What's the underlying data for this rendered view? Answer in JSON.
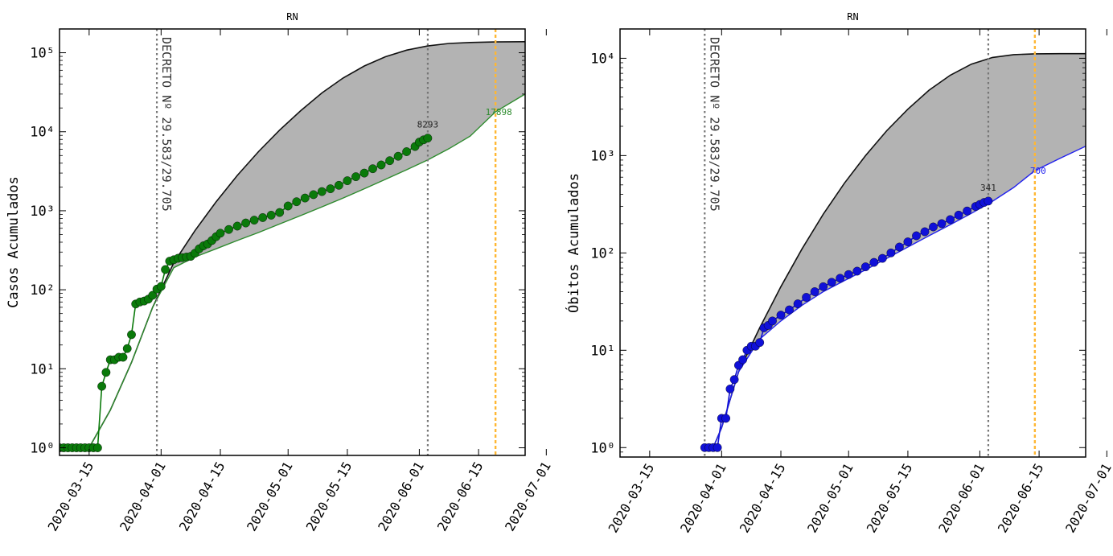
{
  "chart_data": [
    {
      "type": "line",
      "title": "RN",
      "ylabel": "Casos Acumulados",
      "xlabel": "",
      "yscale": "log",
      "ylim": [
        0.8,
        200000
      ],
      "xlim": [
        "2020-03-08",
        "2020-06-26"
      ],
      "xticks": [
        "2020-03-15",
        "2020-04-01",
        "2020-04-15",
        "2020-05-01",
        "2020-05-15",
        "2020-06-01",
        "2020-06-15",
        "2020-07-01"
      ],
      "ytick_labels": [
        "10⁰",
        "10¹",
        "10²",
        "10³",
        "10⁴",
        "10⁵"
      ],
      "ytick_values": [
        1,
        10,
        100,
        1000,
        10000,
        100000
      ],
      "grid": false,
      "legend": "none",
      "annotations": {
        "decree_label": "DECRETO Nº 29.583/29.705",
        "decree_date": "2020-03-31",
        "last_value_label": "8293",
        "last_date": "2020-06-03",
        "projection_label": "17898",
        "projection_date": "2020-06-19"
      },
      "colors": {
        "data": "#0a7a0a",
        "fit": "#2e8b2e",
        "envelope_fill": "#b3b3b3",
        "envelope_upper": "#111111",
        "projection_line": "#ffb733",
        "marker_line": "#777777"
      },
      "series": [
        {
          "name": "",
          "role": "observed",
          "x": [
            "2020-03-08",
            "2020-03-09",
            "2020-03-10",
            "2020-03-11",
            "2020-03-12",
            "2020-03-13",
            "2020-03-14",
            "2020-03-15",
            "2020-03-16",
            "2020-03-17",
            "2020-03-18",
            "2020-03-19",
            "2020-03-20",
            "2020-03-21",
            "2020-03-22",
            "2020-03-23",
            "2020-03-24",
            "2020-03-25",
            "2020-03-26",
            "2020-03-27",
            "2020-03-28",
            "2020-03-29",
            "2020-03-30",
            "2020-03-31",
            "2020-04-01",
            "2020-04-02",
            "2020-04-03",
            "2020-04-04",
            "2020-04-05",
            "2020-04-06",
            "2020-04-07",
            "2020-04-08",
            "2020-04-09",
            "2020-04-10",
            "2020-04-11",
            "2020-04-12",
            "2020-04-13",
            "2020-04-14",
            "2020-04-15",
            "2020-04-17",
            "2020-04-19",
            "2020-04-21",
            "2020-04-23",
            "2020-04-25",
            "2020-04-27",
            "2020-04-29",
            "2020-05-01",
            "2020-05-03",
            "2020-05-05",
            "2020-05-07",
            "2020-05-09",
            "2020-05-11",
            "2020-05-13",
            "2020-05-15",
            "2020-05-17",
            "2020-05-19",
            "2020-05-21",
            "2020-05-23",
            "2020-05-25",
            "2020-05-27",
            "2020-05-29",
            "2020-05-31",
            "2020-06-01",
            "2020-06-02",
            "2020-06-03"
          ],
          "y": [
            1,
            1,
            1,
            1,
            1,
            1,
            1,
            1,
            1,
            1,
            6,
            9,
            13,
            13,
            14,
            14,
            18,
            27,
            66,
            70,
            72,
            76,
            85,
            102,
            110,
            180,
            230,
            240,
            250,
            255,
            260,
            265,
            290,
            330,
            360,
            380,
            420,
            470,
            520,
            580,
            640,
            700,
            760,
            820,
            880,
            950,
            1150,
            1300,
            1450,
            1600,
            1750,
            1900,
            2100,
            2400,
            2700,
            3000,
            3400,
            3800,
            4300,
            4900,
            5600,
            6500,
            7400,
            7900,
            8293
          ]
        },
        {
          "name": "",
          "role": "fit",
          "x": [
            "2020-03-15",
            "2020-03-20",
            "2020-03-25",
            "2020-03-30",
            "2020-04-04",
            "2020-04-09",
            "2020-04-14",
            "2020-04-19",
            "2020-04-24",
            "2020-04-29",
            "2020-05-04",
            "2020-05-09",
            "2020-05-14",
            "2020-05-19",
            "2020-05-24",
            "2020-05-29",
            "2020-06-03",
            "2020-06-08",
            "2020-06-13",
            "2020-06-19",
            "2020-06-26"
          ],
          "y": [
            1,
            3,
            12,
            60,
            190,
            260,
            330,
            420,
            530,
            680,
            870,
            1120,
            1450,
            1900,
            2500,
            3300,
            4400,
            6100,
            8800,
            17898,
            30000
          ]
        },
        {
          "name": "",
          "role": "upper_envelope",
          "x": [
            "2020-03-15",
            "2020-03-20",
            "2020-03-25",
            "2020-03-30",
            "2020-04-04",
            "2020-04-09",
            "2020-04-14",
            "2020-04-19",
            "2020-04-24",
            "2020-04-29",
            "2020-05-04",
            "2020-05-09",
            "2020-05-14",
            "2020-05-19",
            "2020-05-24",
            "2020-05-29",
            "2020-06-03",
            "2020-06-08",
            "2020-06-13",
            "2020-06-19",
            "2020-06-26"
          ],
          "y": [
            1,
            3,
            12,
            60,
            220,
            560,
            1300,
            2800,
            5600,
            10500,
            18500,
            31000,
            48000,
            68000,
            89000,
            108000,
            122000,
            131000,
            135000,
            137000,
            138000
          ]
        }
      ]
    },
    {
      "type": "line",
      "title": "RN",
      "ylabel": "Óbitos Acumulados",
      "xlabel": "",
      "yscale": "log",
      "ylim": [
        0.8,
        20000
      ],
      "xlim": [
        "2020-03-08",
        "2020-06-26"
      ],
      "xticks": [
        "2020-03-15",
        "2020-04-01",
        "2020-04-15",
        "2020-05-01",
        "2020-05-15",
        "2020-06-01",
        "2020-06-15",
        "2020-07-01"
      ],
      "ytick_labels": [
        "10⁰",
        "10¹",
        "10²",
        "10³",
        "10⁴"
      ],
      "ytick_values": [
        1,
        10,
        100,
        1000,
        10000
      ],
      "grid": false,
      "legend": "none",
      "annotations": {
        "decree_label": "DECRETO Nº 29.583/29.705",
        "decree_date": "2020-03-28",
        "last_value_label": "341",
        "last_date": "2020-06-03",
        "projection_label": "700",
        "projection_date": "2020-06-14"
      },
      "colors": {
        "data": "#1010d8",
        "fit": "#2222ee",
        "envelope_fill": "#b3b3b3",
        "envelope_upper": "#111111",
        "projection_line": "#ffb733",
        "marker_line": "#777777"
      },
      "series": [
        {
          "name": "",
          "role": "observed",
          "x": [
            "2020-03-28",
            "2020-03-29",
            "2020-03-30",
            "2020-03-31",
            "2020-04-01",
            "2020-04-02",
            "2020-04-03",
            "2020-04-04",
            "2020-04-05",
            "2020-04-06",
            "2020-04-07",
            "2020-04-08",
            "2020-04-09",
            "2020-04-10",
            "2020-04-11",
            "2020-04-12",
            "2020-04-13",
            "2020-04-15",
            "2020-04-17",
            "2020-04-19",
            "2020-04-21",
            "2020-04-23",
            "2020-04-25",
            "2020-04-27",
            "2020-04-29",
            "2020-05-01",
            "2020-05-03",
            "2020-05-05",
            "2020-05-07",
            "2020-05-09",
            "2020-05-11",
            "2020-05-13",
            "2020-05-15",
            "2020-05-17",
            "2020-05-19",
            "2020-05-21",
            "2020-05-23",
            "2020-05-25",
            "2020-05-27",
            "2020-05-29",
            "2020-05-31",
            "2020-06-01",
            "2020-06-02",
            "2020-06-03"
          ],
          "y": [
            1,
            1,
            1,
            1,
            2,
            2,
            4,
            5,
            7,
            8,
            10,
            11,
            11,
            12,
            17,
            18,
            20,
            23,
            26,
            30,
            35,
            40,
            45,
            50,
            55,
            60,
            65,
            72,
            80,
            88,
            100,
            115,
            130,
            150,
            165,
            185,
            200,
            220,
            245,
            270,
            300,
            315,
            330,
            341
          ]
        },
        {
          "name": "",
          "role": "fit",
          "x": [
            "2020-03-30",
            "2020-04-01",
            "2020-04-05",
            "2020-04-10",
            "2020-04-15",
            "2020-04-20",
            "2020-04-25",
            "2020-04-30",
            "2020-05-05",
            "2020-05-10",
            "2020-05-15",
            "2020-05-20",
            "2020-05-25",
            "2020-05-30",
            "2020-06-04",
            "2020-06-09",
            "2020-06-14",
            "2020-06-20",
            "2020-06-26"
          ],
          "y": [
            1,
            1.6,
            6,
            13,
            20,
            29,
            40,
            52,
            67,
            88,
            115,
            150,
            195,
            255,
            340,
            470,
            700,
            940,
            1250
          ]
        },
        {
          "name": "",
          "role": "upper_envelope",
          "x": [
            "2020-03-30",
            "2020-04-01",
            "2020-04-05",
            "2020-04-10",
            "2020-04-15",
            "2020-04-20",
            "2020-04-25",
            "2020-04-30",
            "2020-05-05",
            "2020-05-10",
            "2020-05-15",
            "2020-05-20",
            "2020-05-25",
            "2020-05-30",
            "2020-06-04",
            "2020-06-09",
            "2020-06-14",
            "2020-06-20",
            "2020-06-26"
          ],
          "y": [
            1,
            1.6,
            6,
            17,
            45,
            110,
            250,
            520,
            1000,
            1800,
            3000,
            4700,
            6700,
            8700,
            10200,
            10900,
            11100,
            11150,
            11150
          ]
        }
      ]
    }
  ]
}
